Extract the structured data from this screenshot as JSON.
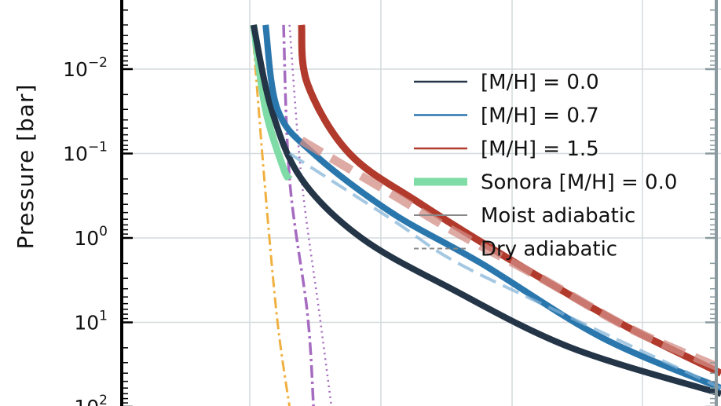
{
  "chart_data": {
    "type": "line",
    "title": "",
    "ylabel": "Pressure  [bar]",
    "xlabel": "",
    "y_scale": "log",
    "y_inverted": true,
    "ylim": [
      0.003,
      100
    ],
    "y_ticks": [
      {
        "base": "10",
        "exp": "−2",
        "value": 0.01
      },
      {
        "base": "10",
        "exp": "−1",
        "value": 0.1
      },
      {
        "base": "10",
        "exp": "0",
        "value": 1
      },
      {
        "base": "10",
        "exp": "1",
        "value": 10
      },
      {
        "base": "10",
        "exp": "2",
        "value": 100
      }
    ],
    "x_unlabeled_range": [
      0,
      100
    ],
    "grid": true,
    "legend_position": "right",
    "legend": [
      {
        "label": "[M/H] = 0.0",
        "color": "#233547",
        "style": "solid"
      },
      {
        "label": "[M/H] = 0.7",
        "color": "#2a77ad",
        "style": "solid"
      },
      {
        "label": "[M/H] = 1.5",
        "color": "#b13a2c",
        "style": "solid"
      },
      {
        "label": "Sonora [M/H] = 0.0",
        "color": "#7fdca6",
        "style": "solid-thick"
      },
      {
        "label": "Moist adiabatic",
        "color": "#888888",
        "style": "solid-thin"
      },
      {
        "label": "Dry adiabatic",
        "color": "#888888",
        "style": "dashed"
      }
    ],
    "series": [
      {
        "key": "mh0",
        "color": "#233547",
        "points": [
          [
            22,
            0.003
          ],
          [
            25,
            0.03
          ],
          [
            30,
            0.2
          ],
          [
            40,
            1
          ],
          [
            55,
            4
          ],
          [
            75,
            20
          ],
          [
            100,
            70
          ]
        ]
      },
      {
        "key": "mh07",
        "color": "#2a77ad",
        "points": [
          [
            24,
            0.003
          ],
          [
            26,
            0.03
          ],
          [
            32,
            0.1
          ],
          [
            45,
            0.5
          ],
          [
            60,
            2
          ],
          [
            80,
            15
          ],
          [
            100,
            60
          ]
        ]
      },
      {
        "key": "mh15",
        "color": "#b13a2c",
        "points": [
          [
            30,
            0.003
          ],
          [
            31,
            0.015
          ],
          [
            38,
            0.1
          ],
          [
            50,
            0.4
          ],
          [
            70,
            3
          ],
          [
            85,
            12
          ],
          [
            100,
            40
          ]
        ]
      },
      {
        "key": "sonora",
        "color": "#7fdca6",
        "points": [
          [
            22,
            0.003
          ],
          [
            24,
            0.03
          ],
          [
            27,
            0.15
          ],
          [
            28,
            0.2
          ]
        ]
      },
      {
        "key": "mh15_dry",
        "color": "#d38e86",
        "points": [
          [
            30,
            0.07
          ],
          [
            45,
            0.3
          ],
          [
            55,
            0.8
          ],
          [
            70,
            3
          ],
          [
            85,
            12
          ],
          [
            100,
            35
          ]
        ]
      },
      {
        "key": "mh07_dry",
        "color": "#7fb0d6",
        "points": [
          [
            28,
            0.1
          ],
          [
            45,
            0.6
          ],
          [
            55,
            1.8
          ],
          [
            70,
            6
          ],
          [
            100,
            60
          ]
        ]
      },
      {
        "key": "cond_orange",
        "color": "#f0b040",
        "points": [
          [
            22,
            0.005
          ],
          [
            24,
            0.3
          ],
          [
            26,
            10
          ],
          [
            28,
            100
          ]
        ]
      },
      {
        "key": "cond_purple_dashdot",
        "color": "#a56bc0",
        "points": [
          [
            27,
            0.003
          ],
          [
            28,
            0.2
          ],
          [
            31,
            8
          ],
          [
            32,
            100
          ]
        ]
      },
      {
        "key": "cond_purple_dotted",
        "color": "#a56bc0",
        "points": [
          [
            28,
            0.003
          ],
          [
            30,
            0.2
          ],
          [
            33,
            8
          ],
          [
            35,
            100
          ]
        ]
      }
    ]
  }
}
